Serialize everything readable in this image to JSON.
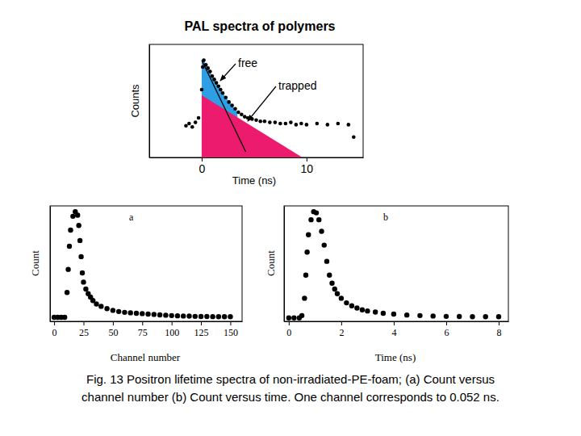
{
  "chart_data": [
    {
      "type": "scatter",
      "title": "PAL spectra of polymers",
      "x_label": "Time (ns)",
      "y_label": "Counts",
      "xlim": [
        -5,
        15.4
      ],
      "ylim": [
        0,
        100
      ],
      "xticks": [
        0,
        10
      ],
      "tick_labels": "x",
      "annotations": [
        {
          "text": "free"
        },
        {
          "text": "trapped"
        }
      ],
      "series": [
        {
          "type": "area",
          "color": "#2f9fe3",
          "x": [
            0,
            0.2,
            0.6,
            1,
            1.4,
            1.8,
            2.3,
            2.9,
            3.4
          ],
          "values": [
            86,
            86,
            79,
            72,
            66,
            60,
            53,
            46,
            40
          ]
        },
        {
          "type": "area",
          "color": "#ec1b6e",
          "x": [
            0,
            9.6
          ],
          "values": [
            55,
            0
          ]
        },
        {
          "type": "line",
          "color": "#000000",
          "line_style": "solid",
          "x": [
            0,
            4.2
          ],
          "values": [
            86,
            5
          ]
        },
        {
          "type": "scatter",
          "color": "#000000",
          "marker": "circle",
          "x": [
            -1.5,
            -1.2,
            -0.9,
            -0.6,
            -0.3,
            0,
            0.1,
            0.2,
            0.4,
            0.6,
            0.8,
            1,
            1.2,
            1.4,
            1.6,
            1.8,
            2,
            2.3,
            2.6,
            2.9,
            3.2,
            3.5,
            3.8,
            4.1,
            4.4,
            4.8,
            5.2,
            5.6,
            6,
            6.5,
            7,
            7.5,
            8,
            8.5,
            9,
            9.5,
            10,
            11,
            12,
            13,
            14,
            14.5
          ],
          "values": [
            28,
            30,
            27,
            31,
            35,
            60,
            80,
            86,
            82,
            79,
            76,
            72,
            69,
            66,
            63,
            60,
            57,
            53,
            49,
            46,
            43,
            40,
            38,
            36,
            35,
            34,
            33,
            32,
            32,
            31,
            31,
            30,
            30,
            31,
            29,
            30,
            29,
            30,
            29,
            30,
            29,
            18
          ]
        }
      ]
    },
    {
      "type": "scatter",
      "x_label": "Channel number",
      "y_label": "Count",
      "xlim": [
        -3.5,
        160
      ],
      "ylim": [
        0,
        100
      ],
      "xticks": [
        0,
        25,
        50,
        75,
        100,
        125,
        150
      ],
      "tick_labels": "x",
      "annotations": [
        {
          "text": "a"
        }
      ],
      "series": [
        {
          "type": "scatter",
          "color": "#000000",
          "marker": "circle",
          "x": [
            0,
            3,
            6,
            9,
            11,
            12,
            13,
            14,
            16,
            18,
            20,
            21,
            22,
            23,
            24,
            25,
            27,
            29,
            31,
            33,
            36,
            40,
            45,
            50,
            55,
            60,
            65,
            70,
            75,
            80,
            85,
            90,
            95,
            100,
            105,
            110,
            115,
            120,
            125,
            130,
            135,
            140,
            145,
            150
          ],
          "values": [
            3.5,
            3.5,
            3.5,
            3.5,
            25,
            45,
            65,
            79,
            91,
            95,
            92,
            83,
            70,
            56,
            42,
            34,
            28,
            24,
            21,
            18,
            15,
            13,
            11,
            9.5,
            8.5,
            7.8,
            7.4,
            7,
            6.7,
            6.3,
            6,
            5.6,
            5.3,
            5,
            4.8,
            4.6,
            4.5,
            4.3,
            4.2,
            4.2,
            4.1,
            4,
            4,
            4
          ]
        }
      ]
    },
    {
      "type": "scatter",
      "x_label": "Time (ns)",
      "y_label": "Count",
      "xlim": [
        -0.18,
        8.37
      ],
      "ylim": [
        0,
        100
      ],
      "xticks": [
        0,
        2,
        4,
        6,
        8
      ],
      "tick_labels": "x",
      "annotations": [
        {
          "text": "b"
        }
      ],
      "series": [
        {
          "type": "scatter",
          "color": "#000000",
          "marker": "circle",
          "x": [
            0,
            0.2,
            0.4,
            0.5,
            0.6,
            0.65,
            0.7,
            0.75,
            0.85,
            0.95,
            1.05,
            1.15,
            1.25,
            1.35,
            1.45,
            1.55,
            1.65,
            1.75,
            1.85,
            2,
            2.2,
            2.4,
            2.6,
            2.8,
            3,
            3.3,
            3.6,
            4,
            4.5,
            5,
            5.5,
            6,
            6.5,
            7,
            7.5,
            8
          ],
          "values": [
            3,
            3,
            3,
            5,
            20,
            40,
            60,
            75,
            88,
            95,
            94,
            88,
            78,
            66,
            52,
            40,
            33,
            28,
            24,
            20,
            16,
            13.5,
            11.5,
            10,
            9,
            8,
            7,
            6.3,
            5.5,
            5,
            4.6,
            4.3,
            4.2,
            4,
            4,
            4
          ]
        }
      ]
    }
  ],
  "caption": [
    "Fig. 13 Positron lifetime spectra of non-irradiated-PE-foam; (a) Count versus",
    "channel number (b) Count versus time. One channel corresponds to 0.052 ns."
  ]
}
